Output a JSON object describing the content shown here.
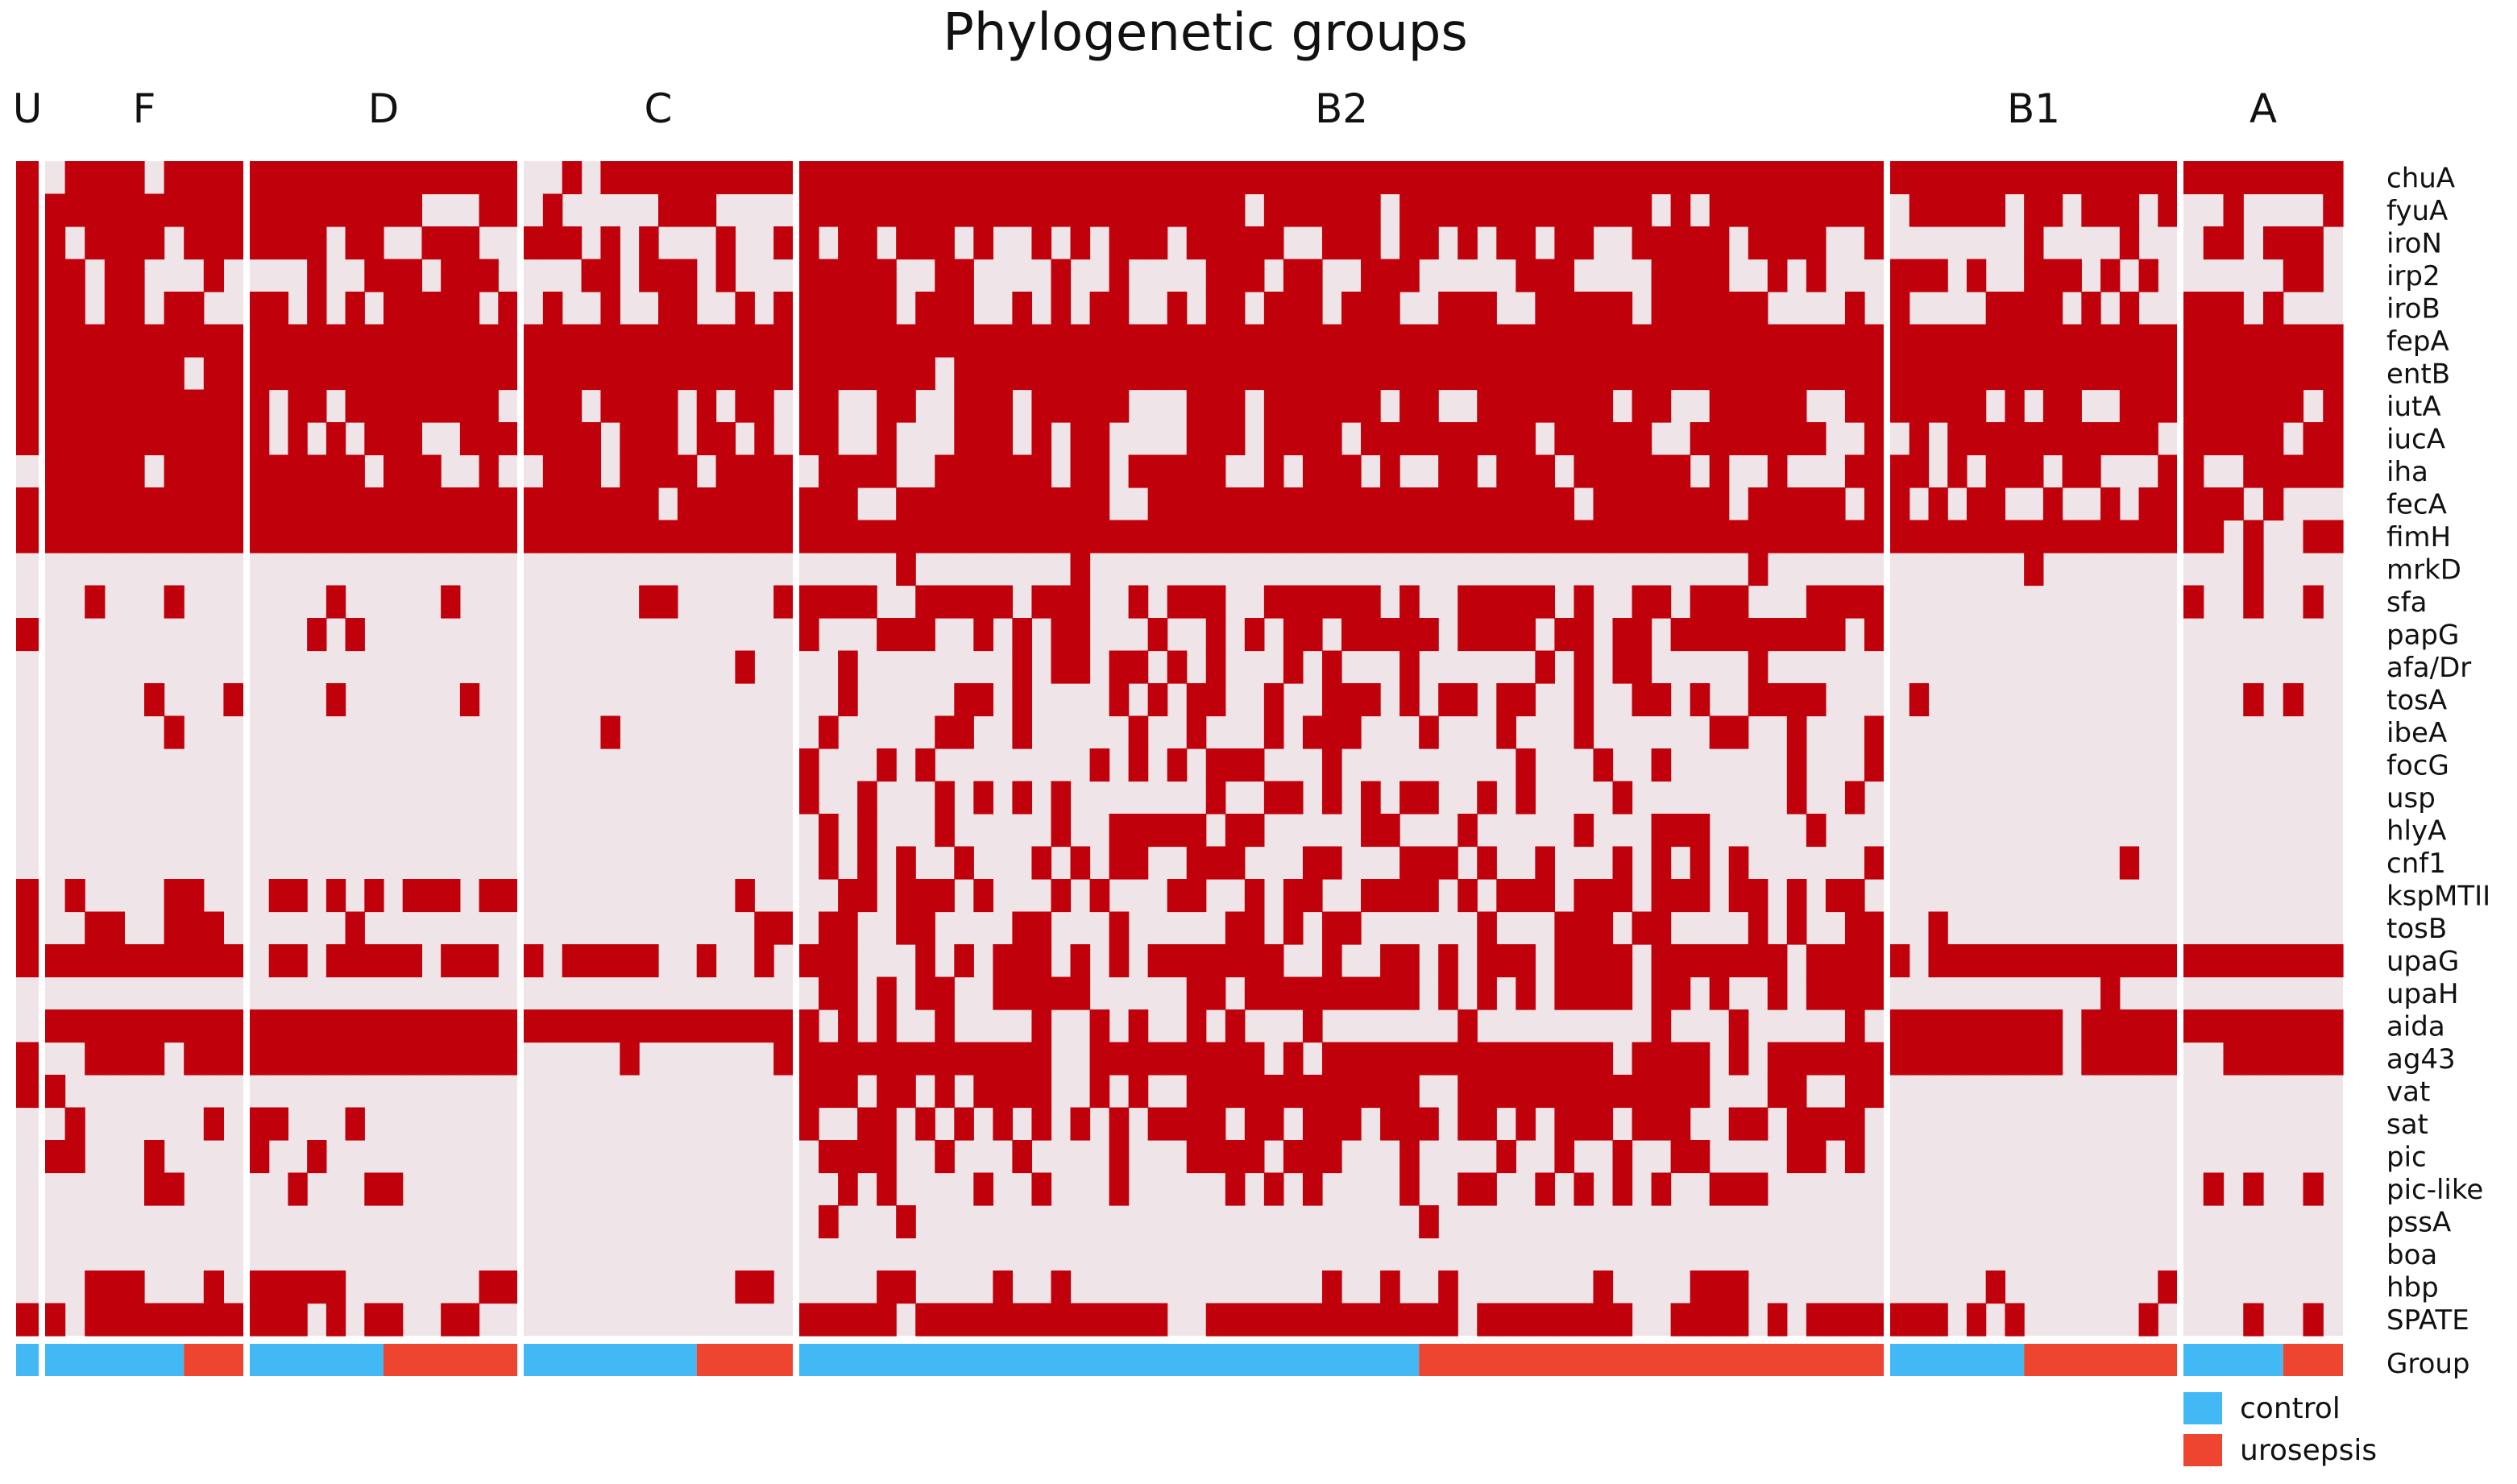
{
  "chart_data": {
    "type": "heatmap",
    "title": "Phylogenetic groups",
    "colors": {
      "present": "#c0000b",
      "absent": "#efe4e7",
      "control": "#42b9f5",
      "urosepsis": "#ee4531",
      "separator": "#ffffff"
    },
    "genes": [
      "chuA",
      "fyuA",
      "iroN",
      "irp2",
      "iroB",
      "fepA",
      "entB",
      "iutA",
      "iucA",
      "iha",
      "fecA",
      "fimH",
      "mrkD",
      "sfa",
      "papG",
      "afa/Dr",
      "tosA",
      "ibeA",
      "focG",
      "usp",
      "hlyA",
      "cnf1",
      "kspMTII",
      "tosB",
      "upaG",
      "upaH",
      "aida",
      "ag43",
      "vat",
      "sat",
      "pic",
      "pic-like",
      "pssA",
      "boa",
      "hbp",
      "SPATE"
    ],
    "group_row_label": "Group",
    "groups": [
      {
        "label": "U",
        "n_isolates": 1,
        "n_control": 1,
        "n_urosepsis": 0
      },
      {
        "label": "F",
        "n_isolates": 10,
        "n_control": 7,
        "n_urosepsis": 3
      },
      {
        "label": "D",
        "n_isolates": 14,
        "n_control": 7,
        "n_urosepsis": 7
      },
      {
        "label": "C",
        "n_isolates": 14,
        "n_control": 9,
        "n_urosepsis": 5
      },
      {
        "label": "B2",
        "n_isolates": 56,
        "n_control": 32,
        "n_urosepsis": 24
      },
      {
        "label": "B1",
        "n_isolates": 15,
        "n_control": 7,
        "n_urosepsis": 8
      },
      {
        "label": "A",
        "n_isolates": 8,
        "n_control": 5,
        "n_urosepsis": 3
      }
    ],
    "gene_frequency": {
      "U": [
        1,
        1,
        1,
        1,
        1,
        1,
        1,
        1,
        1,
        0,
        1,
        1,
        0,
        0,
        1,
        0,
        0,
        0,
        0,
        0,
        0,
        0,
        1,
        1,
        1,
        0,
        0,
        1,
        1,
        0,
        0,
        0,
        0,
        0,
        0,
        1
      ],
      "F": [
        0.85,
        0.75,
        0.6,
        0.55,
        0.6,
        1,
        0.9,
        1,
        1,
        0.9,
        0.7,
        1,
        0,
        0.3,
        0.15,
        0,
        0.35,
        0.2,
        0,
        0,
        0,
        0,
        0.2,
        0.4,
        0.9,
        0,
        1,
        0.6,
        0.3,
        0.15,
        0.3,
        0.1,
        0,
        0,
        0.3,
        0.7
      ],
      "D": [
        1,
        0.7,
        0.55,
        0.5,
        0.6,
        1,
        1,
        0.75,
        0.75,
        0.7,
        1,
        1,
        0,
        0.25,
        0.2,
        0,
        0.15,
        0,
        0,
        0,
        0,
        0,
        0.5,
        0.2,
        0.85,
        0,
        1,
        0.85,
        0,
        0.2,
        0.15,
        0.2,
        0,
        0,
        0.25,
        0.6
      ],
      "C": [
        0.85,
        0.55,
        0.5,
        0.5,
        0.5,
        1,
        1,
        0.7,
        0.7,
        0.85,
        0.9,
        1,
        0,
        0.25,
        0.05,
        0.1,
        0,
        0.05,
        0,
        0,
        0,
        0,
        0.05,
        0.1,
        0.6,
        0,
        0.9,
        0.05,
        0,
        0.05,
        0,
        0,
        0.05,
        0,
        0.15,
        0.2
      ],
      "B2": [
        1,
        0.9,
        0.6,
        0.55,
        0.6,
        1,
        0.97,
        0.75,
        0.7,
        0.65,
        0.8,
        1,
        0.02,
        0.7,
        0.65,
        0.2,
        0.45,
        0.35,
        0.35,
        0.3,
        0.4,
        0.45,
        0.55,
        0.45,
        0.7,
        0.55,
        0.3,
        0.8,
        0.75,
        0.55,
        0.45,
        0.25,
        0.05,
        0,
        0.2,
        0.9
      ],
      "B1": [
        1,
        0.55,
        0.55,
        0.5,
        0.55,
        1,
        1,
        0.8,
        0.8,
        0.8,
        0.5,
        1,
        0.05,
        0.15,
        0,
        0,
        0.15,
        0,
        0,
        0,
        0,
        0.1,
        0.05,
        0.05,
        0.85,
        0.05,
        0.9,
        0.85,
        0,
        0,
        0,
        0,
        0,
        0,
        0.25,
        0.25
      ],
      "A": [
        1,
        0.55,
        0.55,
        0.5,
        0.55,
        1,
        1,
        0.75,
        0.75,
        0.75,
        0.6,
        0.75,
        0.1,
        0.3,
        0,
        0,
        0.1,
        0,
        0,
        0,
        0,
        0,
        0,
        0,
        0.85,
        0,
        0.9,
        0.9,
        0,
        0.1,
        0.1,
        0.1,
        0,
        0,
        0,
        0.1
      ]
    },
    "legend": [
      {
        "label": "control",
        "color": "#42b9f5"
      },
      {
        "label": "urosepsis",
        "color": "#ee4531"
      }
    ]
  }
}
